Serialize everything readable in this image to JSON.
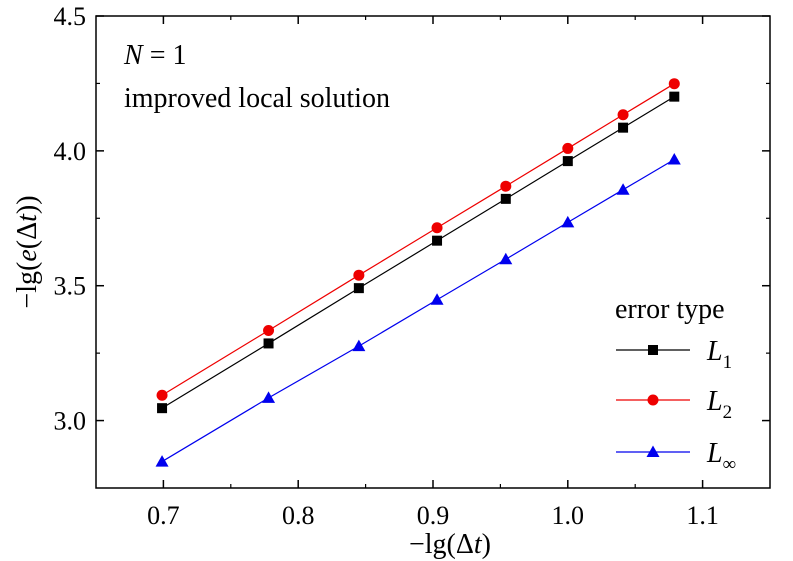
{
  "chart_data": {
    "type": "line",
    "x": [
      0.699,
      0.778,
      0.845,
      0.903,
      0.954,
      1.0,
      1.041,
      1.079
    ],
    "series": [
      {
        "name": "L1",
        "label_base": "L",
        "label_sub": "1",
        "color": "#000000",
        "marker": "square",
        "values": [
          3.046,
          3.286,
          3.491,
          3.667,
          3.822,
          3.962,
          4.086,
          4.201
        ]
      },
      {
        "name": "L2",
        "label_base": "L",
        "label_sub": "2",
        "color": "#ee0000",
        "marker": "circle",
        "values": [
          3.094,
          3.334,
          3.539,
          3.715,
          3.869,
          4.009,
          4.134,
          4.249
        ]
      },
      {
        "name": "L∞",
        "label_base": "L",
        "label_sub": "∞",
        "color": "#0000ee",
        "marker": "triangle",
        "values": [
          2.848,
          3.084,
          3.276,
          3.448,
          3.598,
          3.735,
          3.856,
          3.968
        ]
      }
    ],
    "xlim": [
      0.65,
      1.15
    ],
    "ylim": [
      2.75,
      4.5
    ],
    "xticks": [
      0.7,
      0.8,
      0.9,
      1.0,
      1.1
    ],
    "xtick_labels": [
      "0.7",
      "0.8",
      "0.9",
      "1.0",
      "1.1"
    ],
    "yticks": [
      3.0,
      3.5,
      4.0,
      4.5
    ],
    "ytick_labels": [
      "3.0",
      "3.5",
      "4.0",
      "4.5"
    ],
    "xlabel": "−lg(Δt)",
    "ylabel": "−lg(e(Δt))",
    "annotations": {
      "n_label": "N",
      "n_value": " = 1",
      "method": "improved local solution"
    },
    "legend": {
      "title": "error type",
      "position": "bottom-right"
    },
    "grid": false
  }
}
